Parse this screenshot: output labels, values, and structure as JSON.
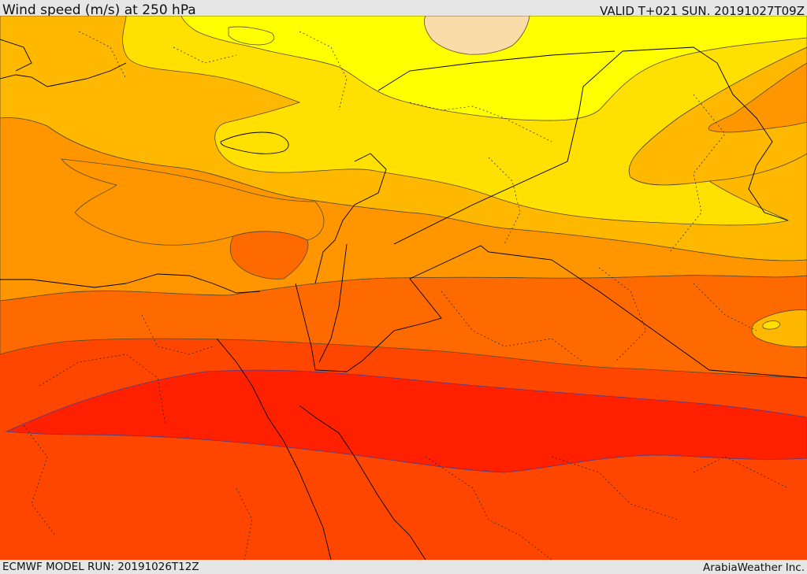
{
  "header": {
    "title": "Wind speed (m/s) at 250 hPa",
    "valid_time": "VALID T+021 SUN. 20191027T09Z"
  },
  "footer": {
    "model_run": "ECMWF MODEL RUN: 20191026T12Z",
    "credit": "ArabiaWeather Inc."
  },
  "colors": {
    "peach": "#fbdca8",
    "yellow": "#ffff00",
    "gold": "#ffe000",
    "amber": "#ffb800",
    "orange": "#ff9600",
    "dark_orange": "#ff6a00",
    "red_orange": "#ff4600",
    "red": "#ff2000",
    "contour_warm": "#5a4a2a",
    "contour_cool": "#4a3c8c",
    "borders": "#000000"
  }
}
